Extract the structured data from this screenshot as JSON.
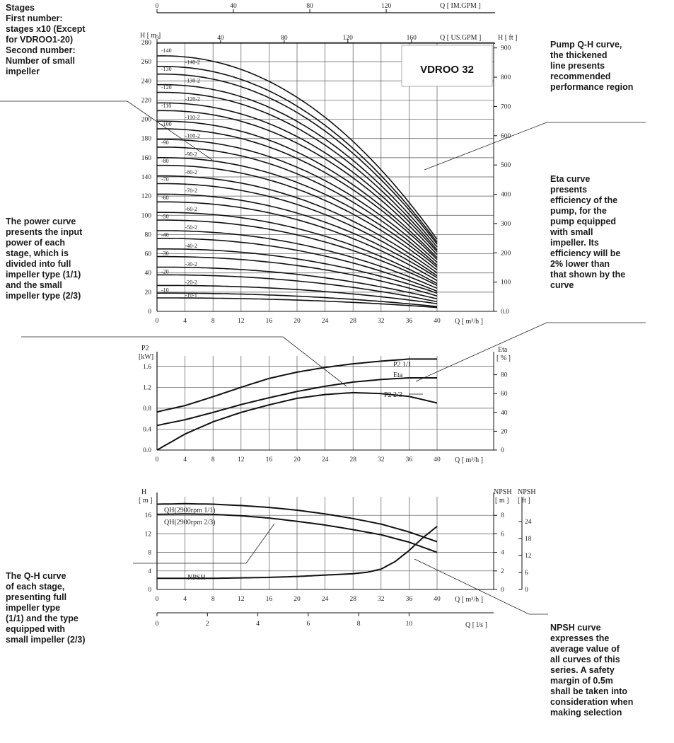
{
  "annotations": {
    "stages": "Stages\nFirst number:\nstages x10 (Except\nfor VDROO1-20)\nSecond number:\nNumber of small\nimpeller",
    "power": "The power curve\npresents the input\npower of each\nstage, which is\ndivided into full\nimpeller type (1/1)\nand the small\nimpeller type (2/3)",
    "qh": "The Q-H curve\nof each stage,\npresenting full\nimpeller type\n(1/1) and the type\nequipped with\nsmall impeller (2/3)",
    "pump_qh": "Pump Q-H curve,\nthe thickened\nline presents\nrecommended\nperformance region",
    "eta": "Eta curve\npresents\nefficiency of the\npump, for the\npump equipped\nwith small\nimpeller. Its\nefficiency will be\n2% lower than\nthat shown by the\ncurve",
    "npsh": "NPSH curve\nexpresses the\naverage value of\nall curves of this\nseries. A safety\nmargin of 0.5m\nshall be taken into\nconsideration when\nmaking selection"
  },
  "chart_data": [
    {
      "type": "line",
      "title": "VDROO 32",
      "xlabel": "Q [ m³/h ]",
      "ylabel": "H [ m ]",
      "ylabel_right": "H [ ft ]",
      "xlabel_top_1": "Q [ IM.GPM ]",
      "xlabel_top_2": "Q [ US.GPM ]",
      "x_ticks": [
        "0",
        "4",
        "8",
        "12",
        "16",
        "20",
        "24",
        "28",
        "32",
        "36",
        "40"
      ],
      "y_ticks": [
        "0",
        "20",
        "40",
        "60",
        "80",
        "100",
        "120",
        "140",
        "160",
        "180",
        "200",
        "220",
        "240",
        "260",
        "280"
      ],
      "y_right_ticks": [
        "0.0",
        "100",
        "200",
        "300",
        "400",
        "500",
        "600",
        "700",
        "800",
        "900"
      ],
      "top_ticks_im": [
        "0",
        "40",
        "80",
        "120"
      ],
      "top_ticks_us": [
        "0",
        "40",
        "80",
        "120",
        "160"
      ],
      "xlim": [
        0,
        40
      ],
      "ylim": [
        0,
        280
      ],
      "stage_labels": [
        "-10-1",
        "-10",
        "-20-2",
        "-20",
        "-30-2",
        "-30",
        "-40-2",
        "-40",
        "-50-2",
        "-50",
        "-60-2",
        "-60",
        "-70-2",
        "-70",
        "-80-2",
        "-80",
        "-90-2",
        "-90",
        "-100-2",
        "-100",
        "-110-2",
        "-110",
        "-120-2",
        "-120",
        "-130-2",
        "-130",
        "-140-2",
        "-140"
      ],
      "shutoff_heads": [
        14,
        19,
        27,
        38,
        46,
        57,
        65,
        76,
        84,
        95,
        103,
        114,
        122,
        133,
        141,
        152,
        160,
        171,
        179,
        190,
        198,
        209,
        217,
        228,
        236,
        247,
        255,
        266
      ],
      "head_at_40": [
        4,
        5,
        8,
        10,
        13,
        16,
        19,
        21,
        24,
        27,
        29,
        32,
        35,
        37,
        40,
        43,
        46,
        48,
        51,
        54,
        56,
        59,
        62,
        64,
        67,
        70,
        72,
        75
      ],
      "grid": true
    },
    {
      "type": "line",
      "xlabel": "Q [ m³/h ]",
      "ylabel": "P2 [kW]",
      "ylabel_right": "Eta [ % ]",
      "x_ticks": [
        "0",
        "4",
        "8",
        "12",
        "16",
        "20",
        "24",
        "28",
        "32",
        "36",
        "40"
      ],
      "y_ticks": [
        "0.0",
        "0.4",
        "0.8",
        "1.2",
        "1.6"
      ],
      "y_right_ticks": [
        "0",
        "20",
        "40",
        "60",
        "80"
      ],
      "xlim": [
        0,
        40
      ],
      "ylim": [
        0,
        1.8
      ],
      "series": [
        {
          "name": "P2 1/1",
          "x": [
            0,
            4,
            8,
            12,
            16,
            20,
            24,
            28,
            32,
            36,
            40
          ],
          "values": [
            0.73,
            0.85,
            1.02,
            1.2,
            1.37,
            1.49,
            1.58,
            1.65,
            1.7,
            1.74,
            1.74
          ]
        },
        {
          "name": "Eta",
          "x": [
            0,
            4,
            8,
            12,
            16,
            20,
            24,
            28,
            32,
            36,
            40
          ],
          "values": [
            0,
            17,
            30,
            40,
            48,
            55,
            59,
            61,
            60,
            57,
            50
          ]
        },
        {
          "name": "P2 2/3",
          "x": [
            0,
            4,
            8,
            12,
            16,
            20,
            24,
            28,
            32,
            36,
            40
          ],
          "values": [
            0.47,
            0.58,
            0.72,
            0.87,
            1.0,
            1.12,
            1.22,
            1.3,
            1.35,
            1.38,
            1.38
          ]
        }
      ],
      "grid": true
    },
    {
      "type": "line",
      "xlabel": "Q [ m³/h ]",
      "xlabel_2": "Q [ l/s ]",
      "ylabel": "H [ m ]",
      "ylabel_right": "NPSH [ m ]",
      "ylabel_right_2": "NPSH [ ft ]",
      "x_ticks": [
        "0",
        "4",
        "8",
        "12",
        "16",
        "20",
        "24",
        "28",
        "32",
        "36",
        "40"
      ],
      "x2_ticks": [
        "0",
        "2",
        "4",
        "6",
        "8",
        "10"
      ],
      "y_ticks": [
        "0",
        "4",
        "8",
        "12",
        "16"
      ],
      "y_right_ticks": [
        "0",
        "2",
        "4",
        "6",
        "8"
      ],
      "y_right2_ticks": [
        "0",
        "6",
        "12",
        "18",
        "24"
      ],
      "xlim": [
        0,
        40
      ],
      "ylim": [
        0,
        20
      ],
      "series": [
        {
          "name": "QH(2900rpm 1/1)",
          "x": [
            0,
            4,
            8,
            12,
            16,
            20,
            24,
            28,
            32,
            36,
            40
          ],
          "values": [
            18.4,
            18.5,
            18.4,
            18.1,
            17.7,
            17.1,
            16.3,
            15.3,
            14.1,
            12.4,
            10.3
          ]
        },
        {
          "name": "QH(2900rpm 2/3)",
          "x": [
            0,
            4,
            8,
            12,
            16,
            20,
            24,
            28,
            32,
            36,
            40
          ],
          "values": [
            16.2,
            16.3,
            16.2,
            15.9,
            15.4,
            14.7,
            13.9,
            12.9,
            11.8,
            10.2,
            8.0
          ]
        },
        {
          "name": "NPSH",
          "x": [
            0,
            4,
            8,
            12,
            16,
            20,
            24,
            28,
            30,
            32,
            34,
            36,
            38,
            40
          ],
          "values": [
            1.2,
            1.2,
            1.2,
            1.25,
            1.3,
            1.4,
            1.55,
            1.7,
            1.85,
            2.2,
            3.0,
            4.2,
            5.6,
            6.8
          ]
        }
      ],
      "grid": true
    }
  ]
}
